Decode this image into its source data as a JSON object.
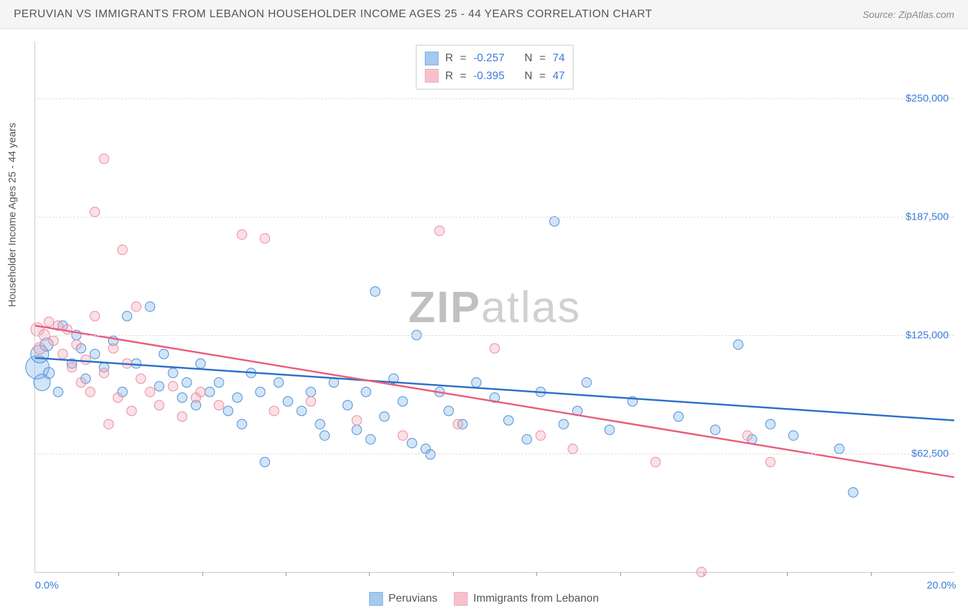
{
  "title": "PERUVIAN VS IMMIGRANTS FROM LEBANON HOUSEHOLDER INCOME AGES 25 - 44 YEARS CORRELATION CHART",
  "source_label": "Source: ",
  "source_name": "ZipAtlas.com",
  "y_axis_title": "Householder Income Ages 25 - 44 years",
  "watermark_a": "ZIP",
  "watermark_b": "atlas",
  "chart": {
    "type": "scatter",
    "xlim": [
      0,
      20
    ],
    "ylim": [
      0,
      280000
    ],
    "x_tick_labels": {
      "0": "0.0%",
      "20": "20.0%"
    },
    "y_tick_labels": {
      "62500": "$62,500",
      "125000": "$125,000",
      "187500": "$187,500",
      "250000": "$250,000"
    },
    "x_minor_ticks": [
      1.82,
      3.64,
      5.45,
      7.27,
      9.09,
      10.91,
      12.73,
      14.55,
      16.36,
      18.18
    ],
    "grid_color": "#dddddd",
    "background_color": "#ffffff",
    "marker_radius_min": 7,
    "marker_radius_max": 18,
    "marker_fill_opacity": 0.35,
    "line_width": 2.5
  },
  "series": [
    {
      "key": "peruvians",
      "label": "Peruvians",
      "color": "#7fb3e8",
      "line_color": "#2c6fc7",
      "stroke": "#4a8fd6",
      "R": "-0.257",
      "N": "74",
      "trend": {
        "x1": 0,
        "y1": 113000,
        "x2": 20,
        "y2": 80000
      },
      "points": [
        {
          "x": 0.05,
          "y": 108000,
          "s": 3.0
        },
        {
          "x": 0.1,
          "y": 115000,
          "s": 2.2
        },
        {
          "x": 0.15,
          "y": 100000,
          "s": 2.0
        },
        {
          "x": 0.25,
          "y": 120000,
          "s": 1.5
        },
        {
          "x": 0.3,
          "y": 105000,
          "s": 1.2
        },
        {
          "x": 0.5,
          "y": 95000,
          "s": 1.0
        },
        {
          "x": 0.6,
          "y": 130000,
          "s": 1.0
        },
        {
          "x": 0.8,
          "y": 110000,
          "s": 1.0
        },
        {
          "x": 0.9,
          "y": 125000,
          "s": 1.0
        },
        {
          "x": 1.0,
          "y": 118000,
          "s": 1.0
        },
        {
          "x": 1.1,
          "y": 102000,
          "s": 1.0
        },
        {
          "x": 1.3,
          "y": 115000,
          "s": 1.0
        },
        {
          "x": 1.5,
          "y": 108000,
          "s": 1.0
        },
        {
          "x": 1.7,
          "y": 122000,
          "s": 1.0
        },
        {
          "x": 1.9,
          "y": 95000,
          "s": 1.0
        },
        {
          "x": 2.0,
          "y": 135000,
          "s": 1.0
        },
        {
          "x": 2.2,
          "y": 110000,
          "s": 1.0
        },
        {
          "x": 2.5,
          "y": 140000,
          "s": 1.0
        },
        {
          "x": 2.7,
          "y": 98000,
          "s": 1.0
        },
        {
          "x": 2.8,
          "y": 115000,
          "s": 1.0
        },
        {
          "x": 3.0,
          "y": 105000,
          "s": 1.0
        },
        {
          "x": 3.2,
          "y": 92000,
          "s": 1.0
        },
        {
          "x": 3.3,
          "y": 100000,
          "s": 1.0
        },
        {
          "x": 3.5,
          "y": 88000,
          "s": 1.0
        },
        {
          "x": 3.6,
          "y": 110000,
          "s": 1.0
        },
        {
          "x": 3.8,
          "y": 95000,
          "s": 1.0
        },
        {
          "x": 4.0,
          "y": 100000,
          "s": 1.0
        },
        {
          "x": 4.2,
          "y": 85000,
          "s": 1.0
        },
        {
          "x": 4.4,
          "y": 92000,
          "s": 1.0
        },
        {
          "x": 4.5,
          "y": 78000,
          "s": 1.0
        },
        {
          "x": 4.7,
          "y": 105000,
          "s": 1.0
        },
        {
          "x": 4.9,
          "y": 95000,
          "s": 1.0
        },
        {
          "x": 5.0,
          "y": 58000,
          "s": 1.0
        },
        {
          "x": 5.3,
          "y": 100000,
          "s": 1.0
        },
        {
          "x": 5.5,
          "y": 90000,
          "s": 1.0
        },
        {
          "x": 5.8,
          "y": 85000,
          "s": 1.0
        },
        {
          "x": 6.0,
          "y": 95000,
          "s": 1.0
        },
        {
          "x": 6.2,
          "y": 78000,
          "s": 1.0
        },
        {
          "x": 6.3,
          "y": 72000,
          "s": 1.0
        },
        {
          "x": 6.5,
          "y": 100000,
          "s": 1.0
        },
        {
          "x": 6.8,
          "y": 88000,
          "s": 1.0
        },
        {
          "x": 7.0,
          "y": 75000,
          "s": 1.0
        },
        {
          "x": 7.2,
          "y": 95000,
          "s": 1.0
        },
        {
          "x": 7.3,
          "y": 70000,
          "s": 1.0
        },
        {
          "x": 7.4,
          "y": 148000,
          "s": 1.0
        },
        {
          "x": 7.6,
          "y": 82000,
          "s": 1.0
        },
        {
          "x": 7.8,
          "y": 102000,
          "s": 1.0
        },
        {
          "x": 8.0,
          "y": 90000,
          "s": 1.0
        },
        {
          "x": 8.2,
          "y": 68000,
          "s": 1.0
        },
        {
          "x": 8.3,
          "y": 125000,
          "s": 1.0
        },
        {
          "x": 8.5,
          "y": 65000,
          "s": 1.0
        },
        {
          "x": 8.6,
          "y": 62000,
          "s": 1.0
        },
        {
          "x": 8.8,
          "y": 95000,
          "s": 1.0
        },
        {
          "x": 9.0,
          "y": 85000,
          "s": 1.0
        },
        {
          "x": 9.3,
          "y": 78000,
          "s": 1.0
        },
        {
          "x": 9.6,
          "y": 100000,
          "s": 1.0
        },
        {
          "x": 10.0,
          "y": 92000,
          "s": 1.0
        },
        {
          "x": 10.3,
          "y": 80000,
          "s": 1.0
        },
        {
          "x": 10.7,
          "y": 70000,
          "s": 1.0
        },
        {
          "x": 11.0,
          "y": 95000,
          "s": 1.0
        },
        {
          "x": 11.3,
          "y": 185000,
          "s": 1.0
        },
        {
          "x": 11.5,
          "y": 78000,
          "s": 1.0
        },
        {
          "x": 11.8,
          "y": 85000,
          "s": 1.0
        },
        {
          "x": 12.0,
          "y": 100000,
          "s": 1.0
        },
        {
          "x": 12.5,
          "y": 75000,
          "s": 1.0
        },
        {
          "x": 13.0,
          "y": 90000,
          "s": 1.0
        },
        {
          "x": 14.0,
          "y": 82000,
          "s": 1.0
        },
        {
          "x": 14.8,
          "y": 75000,
          "s": 1.0
        },
        {
          "x": 15.3,
          "y": 120000,
          "s": 1.0
        },
        {
          "x": 15.6,
          "y": 70000,
          "s": 1.0
        },
        {
          "x": 16.0,
          "y": 78000,
          "s": 1.0
        },
        {
          "x": 16.5,
          "y": 72000,
          "s": 1.0
        },
        {
          "x": 17.5,
          "y": 65000,
          "s": 1.0
        },
        {
          "x": 17.8,
          "y": 42000,
          "s": 1.0
        }
      ]
    },
    {
      "key": "lebanon",
      "label": "Immigrants from Lebanon",
      "color": "#f4a6b8",
      "line_color": "#e85d7a",
      "stroke": "#e88ba0",
      "R": "-0.395",
      "N": "47",
      "trend": {
        "x1": 0,
        "y1": 130000,
        "x2": 20,
        "y2": 50000
      },
      "points": [
        {
          "x": 0.05,
          "y": 128000,
          "s": 1.5
        },
        {
          "x": 0.1,
          "y": 118000,
          "s": 1.3
        },
        {
          "x": 0.2,
          "y": 125000,
          "s": 1.2
        },
        {
          "x": 0.3,
          "y": 132000,
          "s": 1.0
        },
        {
          "x": 0.4,
          "y": 122000,
          "s": 1.0
        },
        {
          "x": 0.5,
          "y": 130000,
          "s": 1.0
        },
        {
          "x": 0.6,
          "y": 115000,
          "s": 1.0
        },
        {
          "x": 0.7,
          "y": 128000,
          "s": 1.0
        },
        {
          "x": 0.8,
          "y": 108000,
          "s": 1.0
        },
        {
          "x": 0.9,
          "y": 120000,
          "s": 1.0
        },
        {
          "x": 1.0,
          "y": 100000,
          "s": 1.0
        },
        {
          "x": 1.1,
          "y": 112000,
          "s": 1.0
        },
        {
          "x": 1.2,
          "y": 95000,
          "s": 1.0
        },
        {
          "x": 1.3,
          "y": 135000,
          "s": 1.0
        },
        {
          "x": 1.3,
          "y": 190000,
          "s": 1.0
        },
        {
          "x": 1.5,
          "y": 218000,
          "s": 1.0
        },
        {
          "x": 1.5,
          "y": 105000,
          "s": 1.0
        },
        {
          "x": 1.6,
          "y": 78000,
          "s": 1.0
        },
        {
          "x": 1.7,
          "y": 118000,
          "s": 1.0
        },
        {
          "x": 1.8,
          "y": 92000,
          "s": 1.0
        },
        {
          "x": 1.9,
          "y": 170000,
          "s": 1.0
        },
        {
          "x": 2.0,
          "y": 110000,
          "s": 1.0
        },
        {
          "x": 2.1,
          "y": 85000,
          "s": 1.0
        },
        {
          "x": 2.2,
          "y": 140000,
          "s": 1.0
        },
        {
          "x": 2.3,
          "y": 102000,
          "s": 1.0
        },
        {
          "x": 2.5,
          "y": 95000,
          "s": 1.0
        },
        {
          "x": 2.7,
          "y": 88000,
          "s": 1.0
        },
        {
          "x": 3.0,
          "y": 98000,
          "s": 1.0
        },
        {
          "x": 3.2,
          "y": 82000,
          "s": 1.0
        },
        {
          "x": 3.5,
          "y": 92000,
          "s": 1.0
        },
        {
          "x": 3.6,
          "y": 95000,
          "s": 1.0
        },
        {
          "x": 4.0,
          "y": 88000,
          "s": 1.0
        },
        {
          "x": 4.5,
          "y": 178000,
          "s": 1.0
        },
        {
          "x": 5.0,
          "y": 176000,
          "s": 1.0
        },
        {
          "x": 5.2,
          "y": 85000,
          "s": 1.0
        },
        {
          "x": 6.0,
          "y": 90000,
          "s": 1.0
        },
        {
          "x": 7.0,
          "y": 80000,
          "s": 1.0
        },
        {
          "x": 8.0,
          "y": 72000,
          "s": 1.0
        },
        {
          "x": 8.8,
          "y": 180000,
          "s": 1.0
        },
        {
          "x": 9.2,
          "y": 78000,
          "s": 1.0
        },
        {
          "x": 10.0,
          "y": 118000,
          "s": 1.0
        },
        {
          "x": 11.0,
          "y": 72000,
          "s": 1.0
        },
        {
          "x": 13.5,
          "y": 58000,
          "s": 1.0
        },
        {
          "x": 14.5,
          "y": 0,
          "s": 1.0
        },
        {
          "x": 15.5,
          "y": 72000,
          "s": 1.0
        },
        {
          "x": 16.0,
          "y": 58000,
          "s": 1.0
        },
        {
          "x": 11.7,
          "y": 65000,
          "s": 1.0
        }
      ]
    }
  ],
  "stats_box": {
    "r_label": "R",
    "n_label": "N",
    "equals": "="
  }
}
